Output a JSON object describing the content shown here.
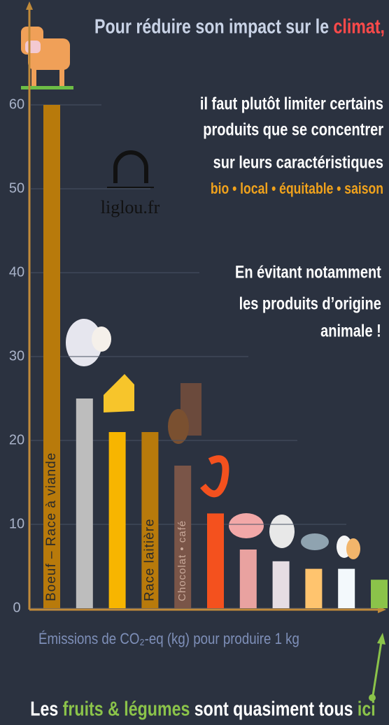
{
  "chart_data": {
    "type": "bar",
    "title": {
      "lead": "Pour réduire son impact sur le",
      "highlight": "climat,"
    },
    "annotations": {
      "line1": "il faut plutôt limiter certains",
      "line2": "produits que se concentrer",
      "line3": "sur leurs caractéristiques",
      "line4": "bio • local • équitable • saison",
      "line5": "En évitant notamment",
      "line6": "les produits d’origine",
      "line7": "animale !"
    },
    "logo": "liglou.fr",
    "x_label": "Émissions de CO₂-eq (kg) pour produire 1 kg",
    "footer": {
      "a": "Les",
      "b": "fruits & légumes",
      "c": "sont quasiment tous",
      "d": "ici"
    },
    "categories": [
      "Boeuf – Race à viande",
      null,
      null,
      "Race laitière",
      "Chocolat • café",
      null,
      null,
      null,
      null,
      null,
      null
    ],
    "values": [
      60,
      25,
      21,
      21,
      17,
      11.3,
      7,
      5.6,
      4.7,
      4.7,
      3.4
    ],
    "colors": [
      "#b87a0b",
      "#bdbdbd",
      "#f7b500",
      "#b87a0b",
      "#7a5548",
      "#f4511e",
      "#e9a2a0",
      "#e6dde3",
      "#ffc46e",
      "#f3f9fc",
      "#8bc34a"
    ],
    "ylim": [
      0,
      60
    ],
    "yticks": [
      0,
      10,
      20,
      30,
      40,
      50,
      60
    ],
    "grid": true
  }
}
